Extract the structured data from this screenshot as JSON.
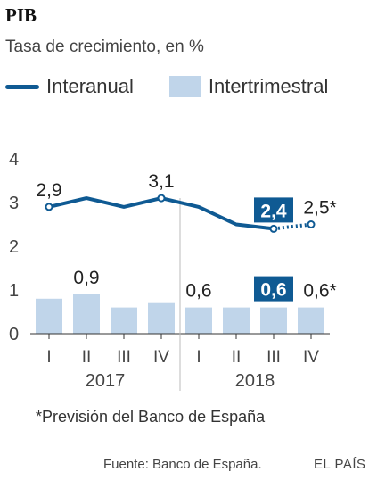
{
  "header": {
    "title": "PIB",
    "subtitle": "Tasa de crecimiento, en %"
  },
  "legend": {
    "line_label": "Interanual",
    "bar_label": "Intertrimestral"
  },
  "footnote": "*Previsión del Banco de España",
  "source": "Fuente: Banco de España.",
  "brand": "EL PAÍS",
  "colors": {
    "line": "#0f5a93",
    "bar": "#c0d5ea",
    "highlight_box": "#0f5a93"
  },
  "chart_data": {
    "type": "bar",
    "categories": [
      "I",
      "II",
      "III",
      "IV",
      "I",
      "II",
      "III",
      "IV"
    ],
    "years": [
      {
        "label": "2017",
        "quarters": [
          0,
          3
        ]
      },
      {
        "label": "2018",
        "quarters": [
          4,
          7
        ]
      }
    ],
    "series": [
      {
        "name": "Intertrimestral",
        "type": "bar",
        "values": [
          0.8,
          0.9,
          0.6,
          0.7,
          0.6,
          0.6,
          0.6,
          0.6
        ]
      },
      {
        "name": "Interanual",
        "type": "line",
        "values": [
          2.9,
          3.1,
          2.9,
          3.1,
          2.9,
          2.5,
          2.4,
          2.5
        ],
        "forecast_from_index": 6
      }
    ],
    "data_labels": [
      {
        "series": "Interanual",
        "index": 0,
        "text": "2,9",
        "highlight": false
      },
      {
        "series": "Interanual",
        "index": 3,
        "text": "3,1",
        "highlight": false
      },
      {
        "series": "Interanual",
        "index": 6,
        "text": "2,4",
        "highlight": true
      },
      {
        "series": "Interanual",
        "index": 7,
        "text": "2,5*",
        "highlight": false
      },
      {
        "series": "Intertrimestral",
        "index": 1,
        "text": "0,9",
        "highlight": false
      },
      {
        "series": "Intertrimestral",
        "index": 4,
        "text": "0,6",
        "highlight": false
      },
      {
        "series": "Intertrimestral",
        "index": 6,
        "text": "0,6",
        "highlight": true
      },
      {
        "series": "Intertrimestral",
        "index": 7,
        "text": "0,6*",
        "highlight": false
      }
    ],
    "yticks": [
      0,
      1,
      2,
      3,
      4
    ],
    "ylim": [
      0,
      4
    ],
    "grid": false
  }
}
